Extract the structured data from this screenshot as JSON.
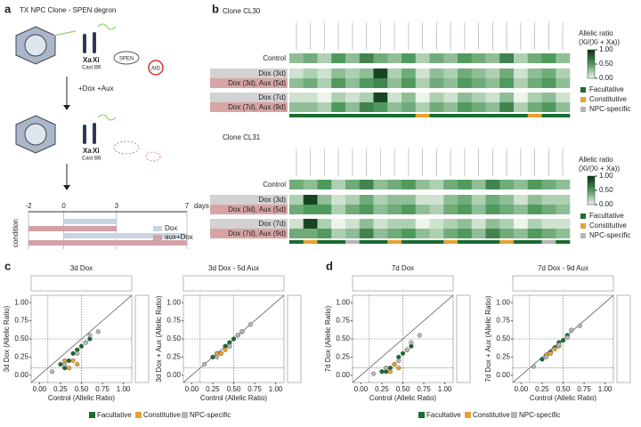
{
  "panel_a": {
    "label": "a",
    "title": "TX NPC Clone - SPEN degron",
    "labels": {
      "xa": "Xa",
      "xi": "Xi",
      "cast": "Cast",
      "b6": "B6",
      "spen": "SPEN",
      "aid": "AID",
      "treatment": "+Dox +Aux",
      "xa2": "Xa",
      "xi2": "Xi",
      "cast2": "Cast",
      "b62": "B6",
      "days": "days",
      "condition": "condition"
    },
    "timeline": {
      "xlim": [
        -2,
        7
      ],
      "ticks": [
        -2,
        0,
        3,
        7
      ],
      "legend": [
        {
          "name": "Dox",
          "color": "#c8d5e2"
        },
        {
          "name": "aux+Dox",
          "color": "#d4a1a6"
        }
      ],
      "bars": [
        {
          "start": 0,
          "end": 3,
          "kind": 0
        },
        {
          "start": -2,
          "end": 3,
          "kind": 1
        },
        {
          "start": 0,
          "end": 7,
          "kind": 0
        },
        {
          "start": -2,
          "end": 7,
          "kind": 1
        }
      ]
    }
  },
  "panel_b": {
    "label": "b",
    "heatmaps": [
      {
        "title": "Clone CL30",
        "rows": [
          "Control",
          "Dox (3d)",
          "Dox (3d), Aux (5d)",
          "Dox (7d)",
          "Dox (7d), Aux (9d)"
        ],
        "values": [
          [
            0.3,
            0.4,
            0.2,
            0.5,
            0.3,
            0.6,
            0.4,
            0.3,
            0.5,
            0.2,
            0.4,
            0.3,
            0.5,
            0.4,
            0.3,
            0.6,
            0.2,
            0.4,
            0.5,
            0.3
          ],
          [
            0.1,
            0.2,
            0.1,
            0.3,
            0.2,
            0.3,
            0.9,
            0.2,
            0.4,
            0.1,
            0.3,
            0.2,
            0.4,
            0.3,
            0.2,
            0.4,
            0.1,
            0.3,
            0.4,
            0.2
          ],
          [
            0.3,
            0.4,
            0.2,
            0.5,
            0.3,
            0.5,
            0.6,
            0.3,
            0.5,
            0.2,
            0.4,
            0.3,
            0.5,
            0.4,
            0.3,
            0.5,
            0.2,
            0.4,
            0.5,
            0.3
          ],
          [
            0.1,
            0.1,
            0.0,
            0.2,
            0.1,
            0.2,
            0.9,
            0.1,
            0.3,
            0.0,
            0.2,
            0.1,
            0.3,
            0.2,
            0.1,
            0.3,
            0.0,
            0.2,
            0.3,
            0.1
          ],
          [
            0.3,
            0.3,
            0.2,
            0.5,
            0.3,
            0.6,
            0.5,
            0.3,
            0.4,
            0.2,
            0.4,
            0.3,
            0.5,
            0.4,
            0.3,
            0.6,
            0.2,
            0.4,
            0.5,
            0.3
          ]
        ],
        "column_categories": [
          0,
          0,
          0,
          0,
          0,
          0,
          0,
          0,
          0,
          1,
          0,
          0,
          0,
          0,
          0,
          0,
          0,
          1,
          0,
          0
        ],
        "colorbar": {
          "title": [
            "Allelic ratio",
            "(Xi/(Xi + Xa))"
          ],
          "clim": [
            0,
            1
          ],
          "ticks": [
            {
              "value": 0,
              "label": "0.00"
            },
            {
              "value": 0.5,
              "label": "0.50"
            },
            {
              "value": 1,
              "label": "1.00"
            }
          ]
        },
        "categories": [
          {
            "name": "Facultative",
            "color": "#1b6b32"
          },
          {
            "name": "Constitutive",
            "color": "#e7a233"
          },
          {
            "name": "NPC-specific",
            "color": "#b5b5b5"
          }
        ]
      },
      {
        "title": "Clone CL31",
        "rows": [
          "Control",
          "Dox (3d)",
          "Dox (3d), Aux (5d)",
          "Dox (7d)",
          "Dox (7d), Aux (9d)"
        ],
        "values": [
          [
            0.4,
            0.3,
            0.5,
            0.2,
            0.4,
            0.6,
            0.3,
            0.4,
            0.5,
            0.3,
            0.2,
            0.4,
            0.5,
            0.3,
            0.6,
            0.4,
            0.3,
            0.5,
            0.4,
            0.3
          ],
          [
            0.2,
            0.9,
            0.3,
            0.1,
            0.2,
            0.4,
            0.2,
            0.3,
            0.3,
            0.1,
            0.1,
            0.3,
            0.4,
            0.2,
            0.4,
            0.3,
            0.1,
            0.3,
            0.2,
            0.2
          ],
          [
            0.4,
            0.5,
            0.5,
            0.2,
            0.4,
            0.5,
            0.3,
            0.4,
            0.5,
            0.3,
            0.2,
            0.4,
            0.5,
            0.3,
            0.5,
            0.4,
            0.3,
            0.5,
            0.4,
            0.3
          ],
          [
            0.1,
            0.9,
            0.2,
            0.0,
            0.1,
            0.3,
            0.1,
            0.2,
            0.2,
            0.0,
            0.1,
            0.2,
            0.3,
            0.1,
            0.3,
            0.2,
            0.0,
            0.2,
            0.1,
            0.1
          ],
          [
            0.4,
            0.4,
            0.5,
            0.2,
            0.3,
            0.6,
            0.3,
            0.4,
            0.5,
            0.3,
            0.2,
            0.4,
            0.5,
            0.3,
            0.6,
            0.4,
            0.3,
            0.5,
            0.4,
            0.3
          ]
        ],
        "column_categories": [
          0,
          1,
          0,
          0,
          2,
          0,
          0,
          1,
          0,
          0,
          0,
          1,
          0,
          0,
          0,
          1,
          0,
          0,
          2,
          0
        ],
        "colorbar": {
          "title": [
            "Allelic ratio",
            "(Xi/(Xi + Xa))"
          ],
          "clim": [
            0,
            1
          ],
          "ticks": [
            {
              "value": 0,
              "label": "0.00"
            },
            {
              "value": 0.5,
              "label": "0.50"
            },
            {
              "value": 1,
              "label": "1.00"
            }
          ]
        },
        "categories": [
          {
            "name": "Facultative",
            "color": "#1b6b32"
          },
          {
            "name": "Constitutive",
            "color": "#e7a233"
          },
          {
            "name": "NPC-specific",
            "color": "#b5b5b5"
          }
        ]
      }
    ]
  },
  "panel_c": {
    "label": "c",
    "legend": [
      {
        "name": "Facultative",
        "color": "#1b6b32"
      },
      {
        "name": "Constitutive",
        "color": "#e7a233"
      },
      {
        "name": "NPC-specific",
        "color": "#b5b5b5"
      }
    ],
    "chart_data": [
      {
        "type": "scatter",
        "title": "3d Dox",
        "xlabel": "Control (Allelic Ratio)",
        "ylabel": "3d Dox (Allelic Ratio)",
        "xlim": [
          -0.1,
          1.1
        ],
        "ylim": [
          -0.1,
          1.1
        ],
        "thresholds": [
          0.1,
          0.5
        ],
        "xticks": [
          {
            "value": 0,
            "label": "0.00"
          },
          {
            "value": 0.25,
            "label": "0.25"
          },
          {
            "value": 0.5,
            "label": "0.50"
          },
          {
            "value": 0.75,
            "label": "0.75"
          },
          {
            "value": 1,
            "label": "1.00"
          }
        ],
        "yticks": [
          {
            "value": 0,
            "label": "0.00"
          },
          {
            "value": 0.25,
            "label": "0.25"
          },
          {
            "value": 0.5,
            "label": "0.50"
          },
          {
            "value": 0.75,
            "label": "0.75"
          },
          {
            "value": 1,
            "label": "1.00"
          }
        ],
        "series": [
          {
            "x": [
              0.25,
              0.35,
              0.4,
              0.45,
              0.5,
              0.55,
              0.3,
              0.6
            ],
            "y": [
              0.15,
              0.2,
              0.3,
              0.35,
              0.4,
              0.45,
              0.1,
              0.5
            ]
          },
          {
            "x": [
              0.3,
              0.35,
              0.4,
              0.45
            ],
            "y": [
              0.2,
              0.1,
              0.2,
              0.15
            ]
          },
          {
            "x": [
              0.15,
              0.3,
              0.45,
              0.55,
              0.6,
              0.7
            ],
            "y": [
              0.05,
              0.15,
              0.3,
              0.45,
              0.55,
              0.6
            ]
          }
        ]
      },
      {
        "type": "scatter",
        "title": "3d Dox - 5d Aux",
        "xlabel": "Control (Allelic Ratio)",
        "ylabel": "3d Dox + Aux (Allelic Ratio)",
        "xlim": [
          -0.1,
          1.1
        ],
        "ylim": [
          -0.1,
          1.1
        ],
        "thresholds": [
          0.1,
          0.5
        ],
        "xticks": [
          {
            "value": 0,
            "label": "0.00"
          },
          {
            "value": 0.25,
            "label": "0.25"
          },
          {
            "value": 0.5,
            "label": "0.50"
          },
          {
            "value": 0.75,
            "label": "0.75"
          },
          {
            "value": 1,
            "label": "1.00"
          }
        ],
        "yticks": [
          {
            "value": 0,
            "label": "0.00"
          },
          {
            "value": 0.25,
            "label": "0.25"
          },
          {
            "value": 0.5,
            "label": "0.50"
          },
          {
            "value": 0.75,
            "label": "0.75"
          },
          {
            "value": 1,
            "label": "1.00"
          }
        ],
        "series": [
          {
            "x": [
              0.25,
              0.35,
              0.4,
              0.45,
              0.5,
              0.55,
              0.3,
              0.6
            ],
            "y": [
              0.25,
              0.3,
              0.4,
              0.45,
              0.5,
              0.55,
              0.3,
              0.6
            ]
          },
          {
            "x": [
              0.3,
              0.35,
              0.4,
              0.45
            ],
            "y": [
              0.3,
              0.3,
              0.35,
              0.4
            ]
          },
          {
            "x": [
              0.15,
              0.3,
              0.45,
              0.55,
              0.6,
              0.7
            ],
            "y": [
              0.15,
              0.25,
              0.4,
              0.55,
              0.6,
              0.7
            ]
          }
        ]
      }
    ]
  },
  "panel_d": {
    "label": "d",
    "legend": [
      {
        "name": "Facultative",
        "color": "#1b6b32"
      },
      {
        "name": "Constitutive",
        "color": "#e7a233"
      },
      {
        "name": "NPC-specific",
        "color": "#b5b5b5"
      }
    ],
    "chart_data": [
      {
        "type": "scatter",
        "title": "7d Dox",
        "xlabel": "Control (Allelic Ratio)",
        "ylabel": "7d Dox (Allelic Ratio)",
        "xlim": [
          -0.1,
          1.1
        ],
        "ylim": [
          -0.1,
          1.1
        ],
        "thresholds": [
          0.1,
          0.5
        ],
        "xticks": [
          {
            "value": 0,
            "label": "0.00"
          },
          {
            "value": 0.25,
            "label": "0.25"
          },
          {
            "value": 0.5,
            "label": "0.50"
          },
          {
            "value": 0.75,
            "label": "0.75"
          },
          {
            "value": 1,
            "label": "1.00"
          }
        ],
        "yticks": [
          {
            "value": 0,
            "label": "0.00"
          },
          {
            "value": 0.25,
            "label": "0.25"
          },
          {
            "value": 0.5,
            "label": "0.50"
          },
          {
            "value": 0.75,
            "label": "0.75"
          },
          {
            "value": 1,
            "label": "1.00"
          }
        ],
        "series": [
          {
            "x": [
              0.25,
              0.35,
              0.4,
              0.45,
              0.5,
              0.55,
              0.3,
              0.6
            ],
            "y": [
              0.05,
              0.1,
              0.15,
              0.25,
              0.3,
              0.35,
              0.05,
              0.4
            ]
          },
          {
            "x": [
              0.3,
              0.35,
              0.4,
              0.45
            ],
            "y": [
              0.1,
              0.05,
              0.15,
              0.1
            ]
          },
          {
            "x": [
              0.15,
              0.3,
              0.45,
              0.55,
              0.6,
              0.7
            ],
            "y": [
              0.02,
              0.1,
              0.2,
              0.35,
              0.45,
              0.55
            ]
          }
        ]
      },
      {
        "type": "scatter",
        "title": "7d Dox - 9d Aux",
        "xlabel": "Control (Allelic Ratio)",
        "ylabel": "7d Dox + Aux (Allelic Ratio)",
        "xlim": [
          -0.1,
          1.1
        ],
        "ylim": [
          -0.1,
          1.1
        ],
        "thresholds": [
          0.1,
          0.5
        ],
        "xticks": [
          {
            "value": 0,
            "label": "0.00"
          },
          {
            "value": 0.25,
            "label": "0.25"
          },
          {
            "value": 0.5,
            "label": "0.50"
          },
          {
            "value": 0.75,
            "label": "0.75"
          },
          {
            "value": 1,
            "label": "1.00"
          }
        ],
        "yticks": [
          {
            "value": 0,
            "label": "0.00"
          },
          {
            "value": 0.25,
            "label": "0.25"
          },
          {
            "value": 0.5,
            "label": "0.50"
          },
          {
            "value": 0.75,
            "label": "0.75"
          },
          {
            "value": 1,
            "label": "1.00"
          }
        ],
        "series": [
          {
            "x": [
              0.25,
              0.35,
              0.4,
              0.45,
              0.5,
              0.55,
              0.3,
              0.6
            ],
            "y": [
              0.22,
              0.32,
              0.38,
              0.45,
              0.48,
              0.55,
              0.28,
              0.62
            ]
          },
          {
            "x": [
              0.3,
              0.35,
              0.4,
              0.45
            ],
            "y": [
              0.28,
              0.3,
              0.36,
              0.4
            ]
          },
          {
            "x": [
              0.15,
              0.3,
              0.45,
              0.55,
              0.6,
              0.7
            ],
            "y": [
              0.12,
              0.25,
              0.42,
              0.52,
              0.62,
              0.68
            ]
          }
        ]
      }
    ]
  }
}
